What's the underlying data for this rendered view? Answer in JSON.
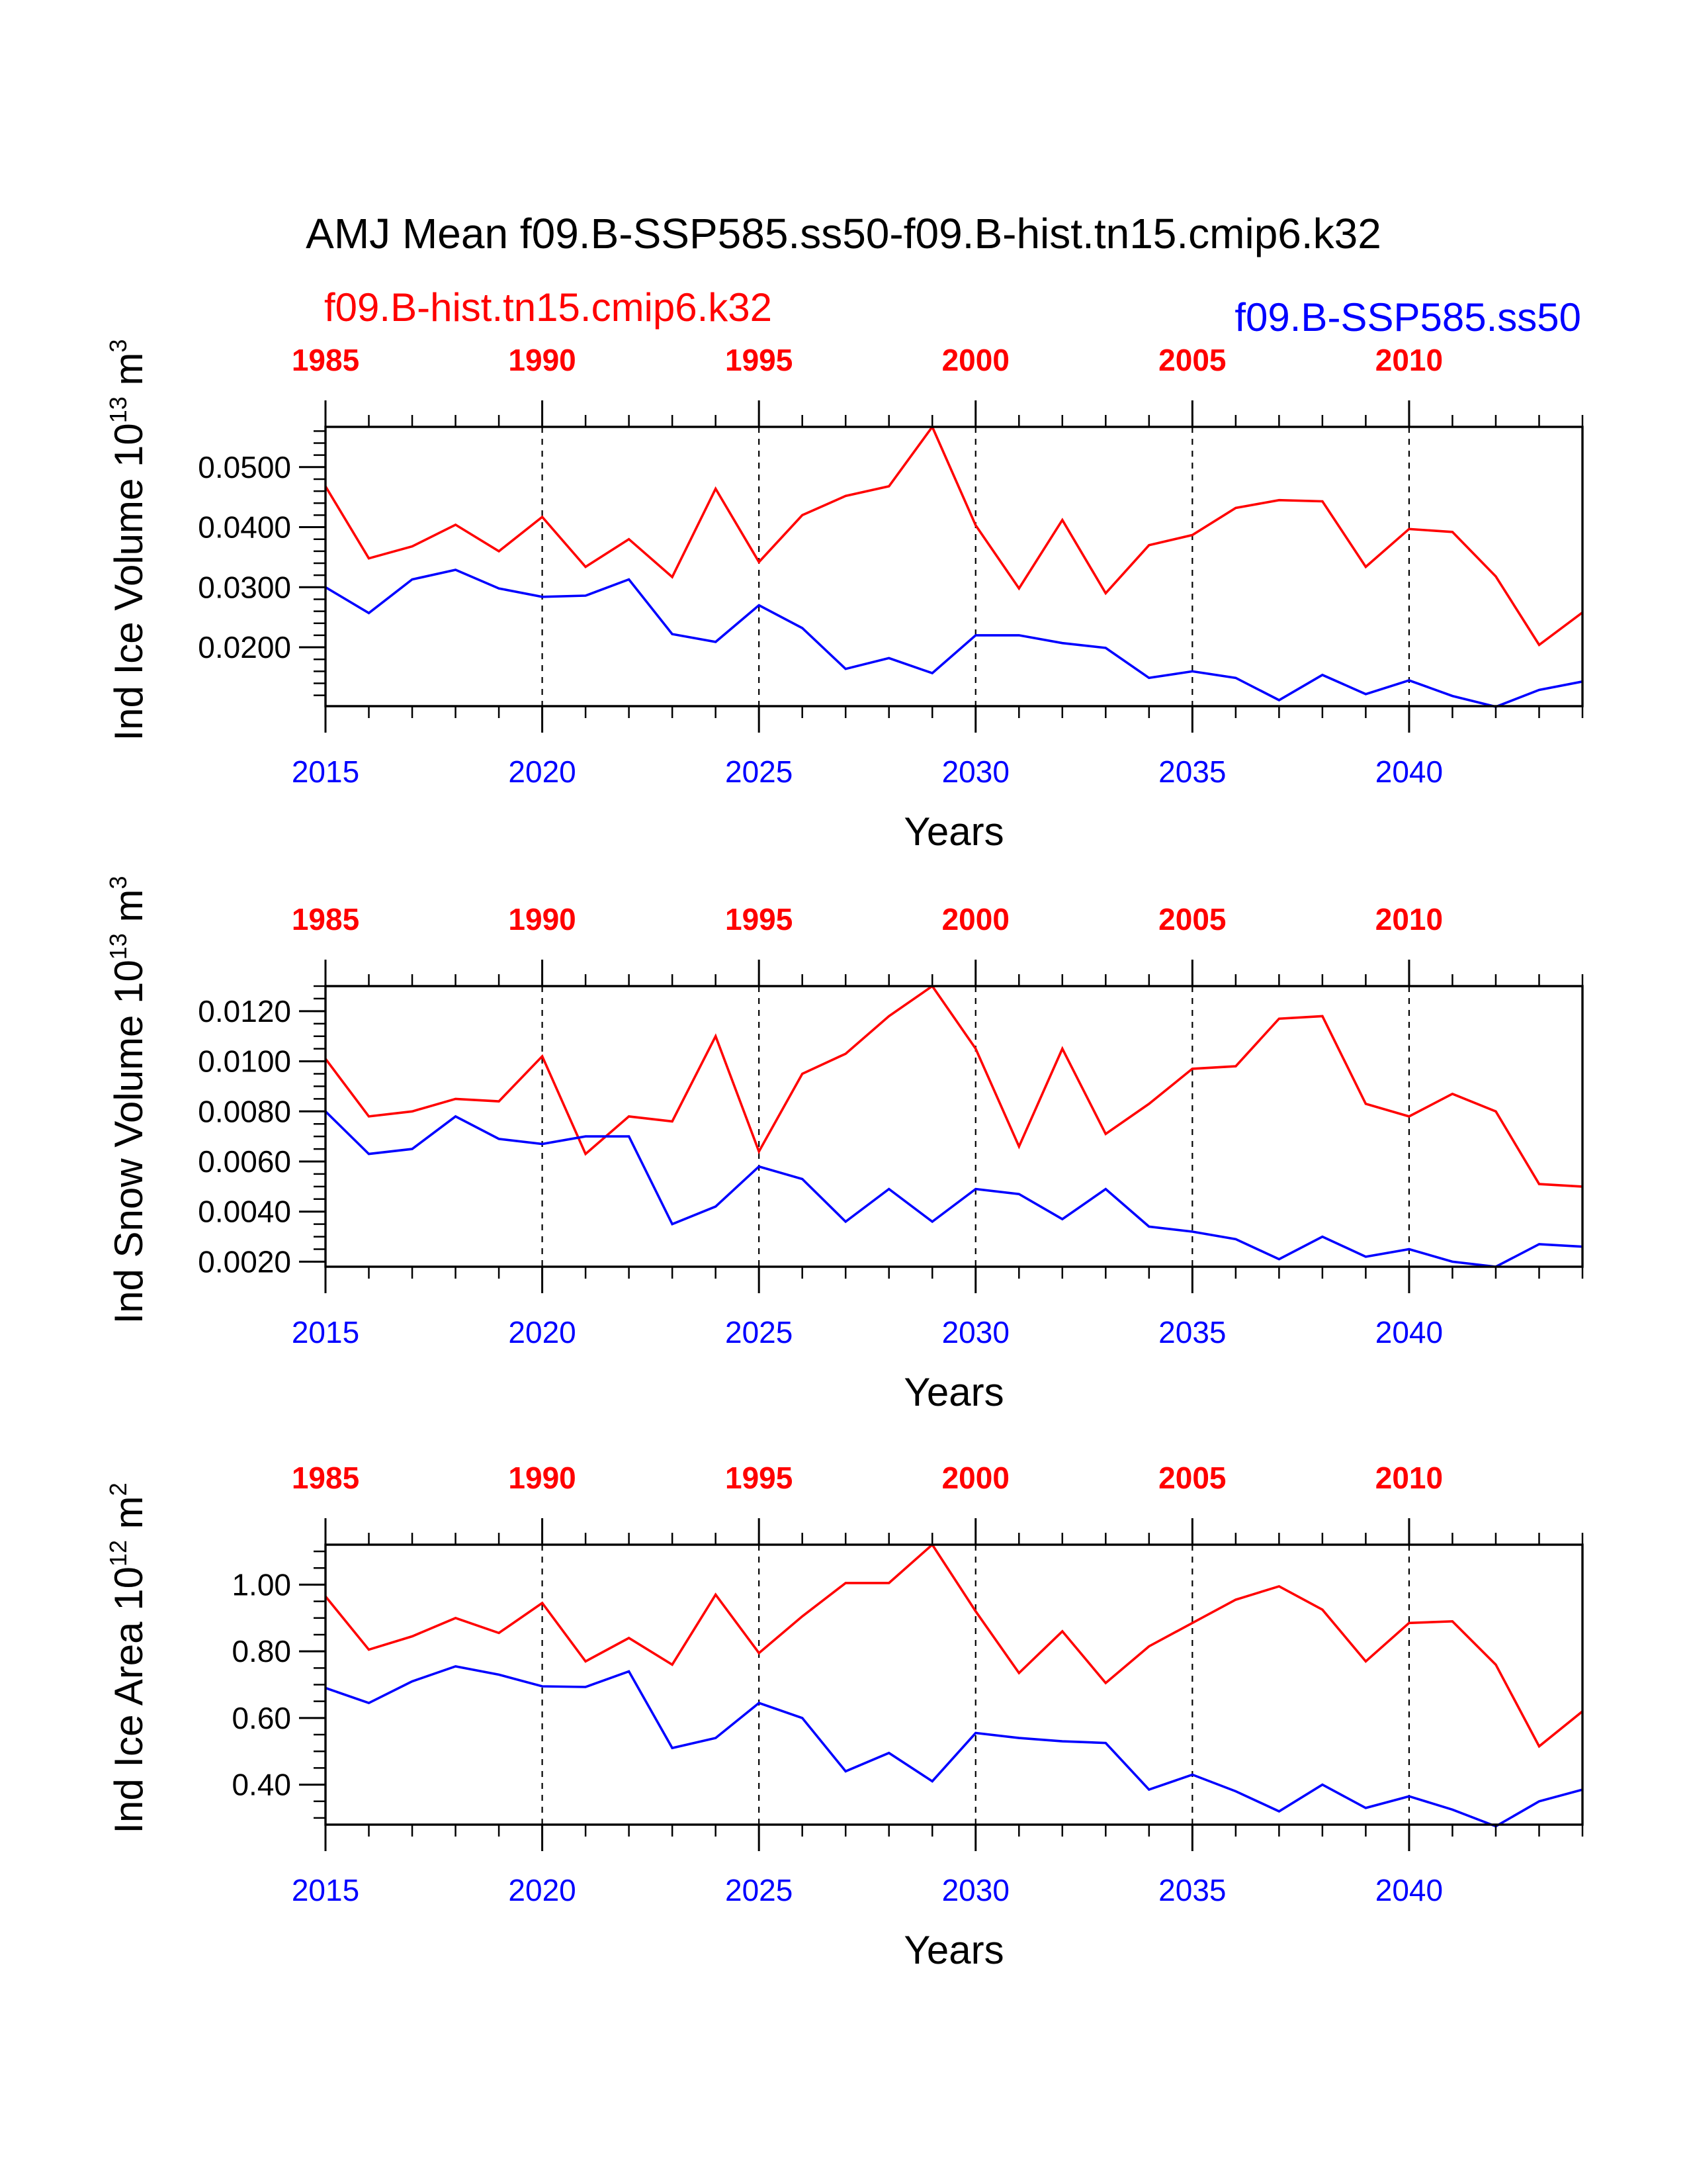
{
  "title": "AMJ Mean f09.B-SSP585.ss50-f09.B-hist.tn15.cmip6.k32",
  "legend": {
    "hist": {
      "text": "f09.B-hist.tn15.cmip6.k32",
      "color": "#ff0000"
    },
    "ssp": {
      "text": "f09.B-SSP585.ss50",
      "color": "#0000ff"
    }
  },
  "colors": {
    "hist": "#ff0000",
    "ssp": "#0000ff",
    "axis": "#000000"
  },
  "chart_data": [
    {
      "type": "line",
      "title": "",
      "xlabel": "Years",
      "ylabel_base": "Ind Ice Volume 10",
      "ylabel_exp": "13",
      "ylabel_unit": "m",
      "ylabel_unit_exp": "3",
      "x_bottom": [
        2015,
        2016,
        2017,
        2018,
        2019,
        2020,
        2021,
        2022,
        2023,
        2024,
        2025,
        2026,
        2027,
        2028,
        2029,
        2030,
        2031,
        2032,
        2033,
        2034,
        2035,
        2036,
        2037,
        2038,
        2039,
        2040,
        2041,
        2042,
        2043,
        2044
      ],
      "x_top": [
        1985,
        1986,
        1987,
        1988,
        1989,
        1990,
        1991,
        1992,
        1993,
        1994,
        1995,
        1996,
        1997,
        1998,
        1999,
        2000,
        2001,
        2002,
        2003,
        2004,
        2005,
        2006,
        2007,
        2008,
        2009,
        2010,
        2011,
        2012,
        2013,
        2014
      ],
      "xlim": [
        2015,
        2044
      ],
      "bottom_ticks": [
        "2015",
        "2020",
        "2025",
        "2030",
        "2035",
        "2040"
      ],
      "top_ticks": [
        "1985",
        "1990",
        "1995",
        "2000",
        "2005",
        "2010"
      ],
      "ylim": [
        0.0102,
        0.0567
      ],
      "yticks": [
        0.02,
        0.03,
        0.04,
        0.05
      ],
      "yticklabels": [
        "0.0200",
        "0.0300",
        "0.0400",
        "0.0500"
      ],
      "yminor": 0.002,
      "series": [
        {
          "name": "f09.B-hist.tn15.cmip6.k32",
          "color": "#ff0000",
          "values": [
            0.0468,
            0.0348,
            0.0368,
            0.0404,
            0.036,
            0.0417,
            0.0334,
            0.038,
            0.0317,
            0.0464,
            0.0342,
            0.042,
            0.0452,
            0.0468,
            0.0567,
            0.0403,
            0.0298,
            0.0412,
            0.029,
            0.037,
            0.0387,
            0.0432,
            0.0445,
            0.0443,
            0.0334,
            0.0397,
            0.0392,
            0.0318,
            0.0204,
            0.0258
          ]
        },
        {
          "name": "f09.B-SSP585.ss50",
          "color": "#0000ff",
          "values": [
            0.03,
            0.0257,
            0.0313,
            0.0329,
            0.0298,
            0.0284,
            0.0286,
            0.0313,
            0.0222,
            0.0209,
            0.027,
            0.0232,
            0.0164,
            0.0182,
            0.0157,
            0.022,
            0.022,
            0.0207,
            0.0199,
            0.0149,
            0.016,
            0.0149,
            0.0112,
            0.0154,
            0.0122,
            0.0145,
            0.0119,
            0.0101,
            0.0129,
            0.0143
          ]
        }
      ]
    },
    {
      "type": "line",
      "title": "",
      "xlabel": "Years",
      "ylabel_base": "Ind Snow Volume 10",
      "ylabel_exp": "13",
      "ylabel_unit": "m",
      "ylabel_unit_exp": "3",
      "x_bottom": [
        2015,
        2016,
        2017,
        2018,
        2019,
        2020,
        2021,
        2022,
        2023,
        2024,
        2025,
        2026,
        2027,
        2028,
        2029,
        2030,
        2031,
        2032,
        2033,
        2034,
        2035,
        2036,
        2037,
        2038,
        2039,
        2040,
        2041,
        2042,
        2043,
        2044
      ],
      "x_top": [
        1985,
        1986,
        1987,
        1988,
        1989,
        1990,
        1991,
        1992,
        1993,
        1994,
        1995,
        1996,
        1997,
        1998,
        1999,
        2000,
        2001,
        2002,
        2003,
        2004,
        2005,
        2006,
        2007,
        2008,
        2009,
        2010,
        2011,
        2012,
        2013,
        2014
      ],
      "xlim": [
        2015,
        2044
      ],
      "bottom_ticks": [
        "2015",
        "2020",
        "2025",
        "2030",
        "2035",
        "2040"
      ],
      "top_ticks": [
        "1985",
        "1990",
        "1995",
        "2000",
        "2005",
        "2010"
      ],
      "ylim": [
        0.0018,
        0.013
      ],
      "yticks": [
        0.002,
        0.004,
        0.006,
        0.008,
        0.01,
        0.012
      ],
      "yticklabels": [
        "0.0020",
        "0.0040",
        "0.0060",
        "0.0080",
        "0.0100",
        "0.0120"
      ],
      "yminor": 0.0005,
      "series": [
        {
          "name": "f09.B-hist.tn15.cmip6.k32",
          "color": "#ff0000",
          "values": [
            0.0101,
            0.0078,
            0.008,
            0.0085,
            0.0084,
            0.0102,
            0.0063,
            0.0078,
            0.0076,
            0.011,
            0.0064,
            0.0095,
            0.0103,
            0.0118,
            0.013,
            0.0105,
            0.0066,
            0.0105,
            0.0071,
            0.0083,
            0.0097,
            0.0098,
            0.0117,
            0.0118,
            0.0083,
            0.0078,
            0.0087,
            0.008,
            0.0051,
            0.005
          ]
        },
        {
          "name": "f09.B-SSP585.ss50",
          "color": "#0000ff",
          "values": [
            0.008,
            0.0063,
            0.0065,
            0.0078,
            0.0069,
            0.0067,
            0.007,
            0.007,
            0.0035,
            0.0042,
            0.0058,
            0.0053,
            0.0036,
            0.0049,
            0.0036,
            0.0049,
            0.0047,
            0.0037,
            0.0049,
            0.0034,
            0.0032,
            0.0029,
            0.0021,
            0.003,
            0.0022,
            0.0025,
            0.002,
            0.0018,
            0.0027,
            0.0026
          ]
        }
      ]
    },
    {
      "type": "line",
      "title": "",
      "xlabel": "Years",
      "ylabel_base": "Ind Ice Area 10",
      "ylabel_exp": "12",
      "ylabel_unit": "m",
      "ylabel_unit_exp": "2",
      "x_bottom": [
        2015,
        2016,
        2017,
        2018,
        2019,
        2020,
        2021,
        2022,
        2023,
        2024,
        2025,
        2026,
        2027,
        2028,
        2029,
        2030,
        2031,
        2032,
        2033,
        2034,
        2035,
        2036,
        2037,
        2038,
        2039,
        2040,
        2041,
        2042,
        2043,
        2044
      ],
      "x_top": [
        1985,
        1986,
        1987,
        1988,
        1989,
        1990,
        1991,
        1992,
        1993,
        1994,
        1995,
        1996,
        1997,
        1998,
        1999,
        2000,
        2001,
        2002,
        2003,
        2004,
        2005,
        2006,
        2007,
        2008,
        2009,
        2010,
        2011,
        2012,
        2013,
        2014
      ],
      "xlim": [
        2015,
        2044
      ],
      "bottom_ticks": [
        "2015",
        "2020",
        "2025",
        "2030",
        "2035",
        "2040"
      ],
      "top_ticks": [
        "1985",
        "1990",
        "1995",
        "2000",
        "2005",
        "2010"
      ],
      "ylim": [
        0.28,
        1.12
      ],
      "yticks": [
        0.4,
        0.6,
        0.8,
        1.0
      ],
      "yticklabels": [
        "0.40",
        "0.60",
        "0.80",
        "1.00"
      ],
      "yminor": 0.05,
      "series": [
        {
          "name": "f09.B-hist.tn15.cmip6.k32",
          "color": "#ff0000",
          "values": [
            0.965,
            0.805,
            0.845,
            0.9,
            0.855,
            0.945,
            0.77,
            0.84,
            0.76,
            0.97,
            0.795,
            0.905,
            1.005,
            1.005,
            1.12,
            0.92,
            0.735,
            0.86,
            0.705,
            0.815,
            0.885,
            0.955,
            0.995,
            0.925,
            0.77,
            0.885,
            0.89,
            0.76,
            0.515,
            0.62
          ]
        },
        {
          "name": "f09.B-SSP585.ss50",
          "color": "#0000ff",
          "values": [
            0.69,
            0.645,
            0.71,
            0.755,
            0.73,
            0.695,
            0.693,
            0.74,
            0.51,
            0.54,
            0.645,
            0.6,
            0.44,
            0.495,
            0.41,
            0.555,
            0.54,
            0.53,
            0.525,
            0.385,
            0.43,
            0.38,
            0.32,
            0.4,
            0.33,
            0.365,
            0.325,
            0.275,
            0.35,
            0.385
          ]
        }
      ]
    }
  ]
}
